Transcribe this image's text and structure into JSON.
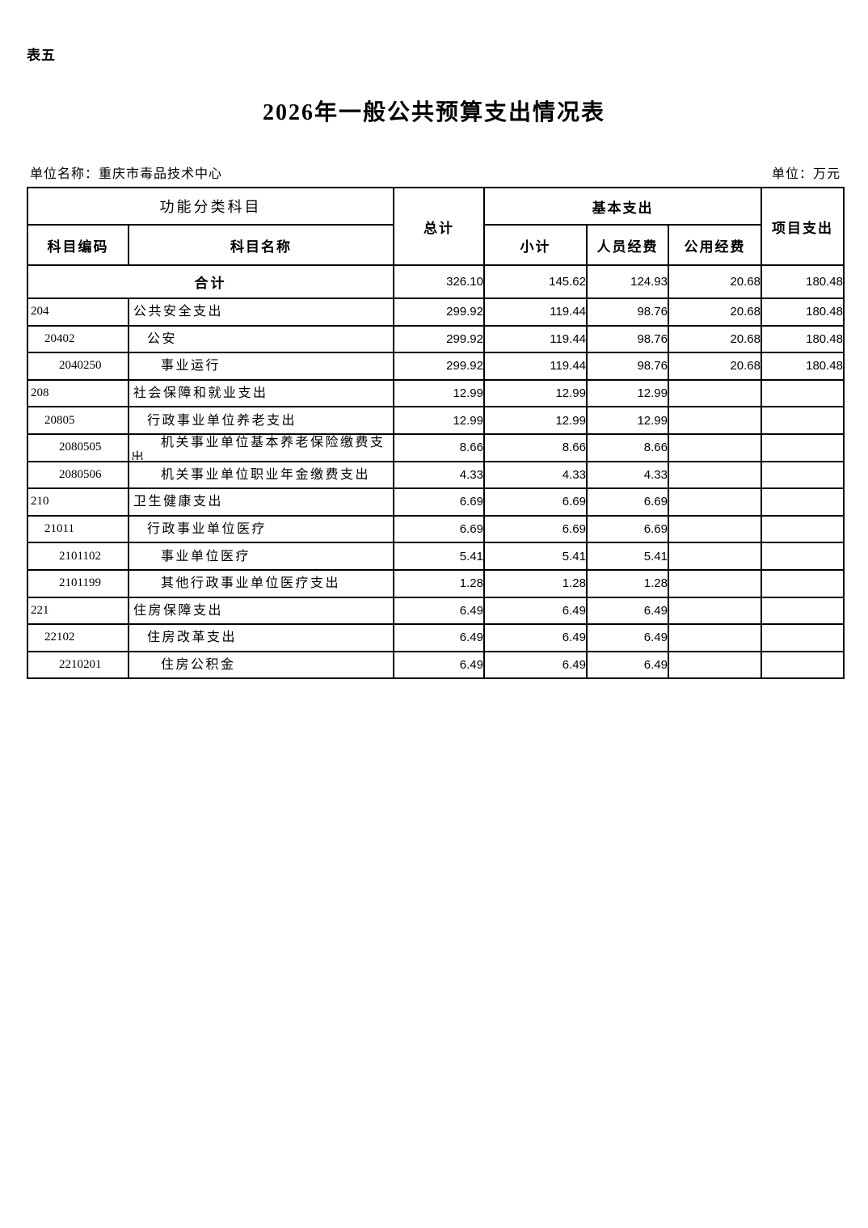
{
  "page": {
    "tag": "表五",
    "title": "2026年一般公共预算支出情况表",
    "unit_name": "单位名称：重庆市毒品技术中心",
    "unit_label": "单位：万元"
  },
  "table": {
    "header": {
      "function_group": "功能分类科目",
      "code": "科目编码",
      "name": "科目名称",
      "total": "总计",
      "basic_group": "基本支出",
      "subtotal": "小计",
      "personnel": "人员经费",
      "public": "公用经费",
      "project": "项目支出"
    },
    "total_row": {
      "label": "合计",
      "values": [
        "326.10",
        "145.62",
        "124.93",
        "20.68",
        "180.48"
      ]
    },
    "rows": [
      {
        "code": "204",
        "name": "公共安全支出",
        "level": 1,
        "values": [
          "299.92",
          "119.44",
          "98.76",
          "20.68",
          "180.48"
        ]
      },
      {
        "code": "20402",
        "name": "公安",
        "level": 2,
        "values": [
          "299.92",
          "119.44",
          "98.76",
          "20.68",
          "180.48"
        ]
      },
      {
        "code": "2040250",
        "name": "事业运行",
        "level": 3,
        "values": [
          "299.92",
          "119.44",
          "98.76",
          "20.68",
          "180.48"
        ]
      },
      {
        "code": "208",
        "name": "社会保障和就业支出",
        "level": 1,
        "values": [
          "12.99",
          "12.99",
          "12.99",
          "",
          ""
        ]
      },
      {
        "code": "20805",
        "name": "行政事业单位养老支出",
        "level": 2,
        "values": [
          "12.99",
          "12.99",
          "12.99",
          "",
          ""
        ]
      },
      {
        "code": "2080505",
        "name": "机关事业单位基本养老保险缴费支出",
        "level": 3,
        "values": [
          "8.66",
          "8.66",
          "8.66",
          "",
          ""
        ]
      },
      {
        "code": "2080506",
        "name": "机关事业单位职业年金缴费支出",
        "level": 3,
        "values": [
          "4.33",
          "4.33",
          "4.33",
          "",
          ""
        ]
      },
      {
        "code": "210",
        "name": "卫生健康支出",
        "level": 1,
        "values": [
          "6.69",
          "6.69",
          "6.69",
          "",
          ""
        ]
      },
      {
        "code": "21011",
        "name": "行政事业单位医疗",
        "level": 2,
        "values": [
          "6.69",
          "6.69",
          "6.69",
          "",
          ""
        ]
      },
      {
        "code": "2101102",
        "name": "事业单位医疗",
        "level": 3,
        "values": [
          "5.41",
          "5.41",
          "5.41",
          "",
          ""
        ]
      },
      {
        "code": "2101199",
        "name": "其他行政事业单位医疗支出",
        "level": 3,
        "values": [
          "1.28",
          "1.28",
          "1.28",
          "",
          ""
        ]
      },
      {
        "code": "221",
        "name": "住房保障支出",
        "level": 1,
        "values": [
          "6.49",
          "6.49",
          "6.49",
          "",
          ""
        ]
      },
      {
        "code": "22102",
        "name": "住房改革支出",
        "level": 2,
        "values": [
          "6.49",
          "6.49",
          "6.49",
          "",
          ""
        ]
      },
      {
        "code": "2210201",
        "name": "住房公积金",
        "level": 3,
        "values": [
          "6.49",
          "6.49",
          "6.49",
          "",
          ""
        ]
      }
    ]
  }
}
